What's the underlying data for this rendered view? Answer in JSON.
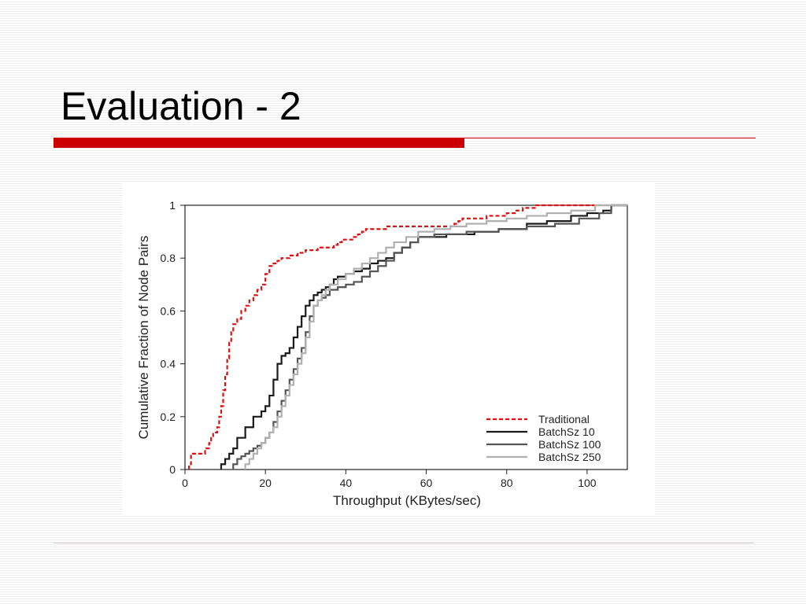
{
  "slide": {
    "title": "Evaluation - 2",
    "accent_color": "#cc0000",
    "rule_color": "#e3c8c8"
  },
  "chart_data": {
    "type": "line",
    "step": true,
    "xlabel": "Throughput (KBytes/sec)",
    "ylabel": "Cumulative Fraction of Node Pairs",
    "xlim": [
      0,
      110
    ],
    "ylim": [
      0,
      1
    ],
    "xticks": [
      "0",
      "20",
      "40",
      "60",
      "80",
      "100"
    ],
    "yticks": [
      "0",
      "0.2",
      "0.4",
      "0.6",
      "0.8",
      "1"
    ],
    "legend_position": "bottom-right",
    "grid": false,
    "series": [
      {
        "name": "Traditional",
        "color": "#dd1111",
        "dash": "dashed",
        "x": [
          1,
          1.5,
          5,
          6,
          6.5,
          7,
          8,
          8.5,
          9,
          9.5,
          10,
          10.5,
          11,
          11.5,
          12,
          13,
          14,
          15,
          16,
          17,
          18,
          19,
          20,
          21,
          22,
          23,
          24,
          25,
          26,
          28,
          30,
          33,
          35,
          37,
          38,
          39,
          42,
          43,
          44,
          45,
          50,
          57,
          63,
          67,
          68,
          69,
          75,
          80,
          82,
          84,
          87,
          88
        ],
        "y": [
          0.02,
          0.06,
          0.08,
          0.1,
          0.12,
          0.14,
          0.16,
          0.2,
          0.24,
          0.3,
          0.36,
          0.42,
          0.48,
          0.52,
          0.55,
          0.57,
          0.6,
          0.62,
          0.64,
          0.66,
          0.68,
          0.7,
          0.74,
          0.77,
          0.78,
          0.79,
          0.8,
          0.8,
          0.81,
          0.82,
          0.83,
          0.84,
          0.84,
          0.85,
          0.86,
          0.87,
          0.88,
          0.89,
          0.9,
          0.91,
          0.92,
          0.92,
          0.92,
          0.93,
          0.94,
          0.95,
          0.96,
          0.97,
          0.98,
          0.99,
          1.0,
          1.0
        ]
      },
      {
        "name": "BatchSz 10",
        "color": "#1a1a1a",
        "dash": "solid",
        "x": [
          9,
          10,
          11,
          12,
          13,
          15,
          17,
          19,
          20,
          21,
          22,
          23,
          24,
          25,
          26,
          27,
          28,
          29,
          30,
          31,
          32,
          33,
          34,
          35,
          36,
          37,
          38,
          40,
          42,
          44,
          46,
          48,
          50,
          52,
          54,
          56,
          58,
          65,
          72,
          78,
          85,
          90,
          96,
          100,
          104,
          106,
          110
        ],
        "y": [
          0.02,
          0.04,
          0.06,
          0.08,
          0.12,
          0.16,
          0.2,
          0.22,
          0.24,
          0.28,
          0.34,
          0.4,
          0.43,
          0.44,
          0.46,
          0.5,
          0.54,
          0.58,
          0.62,
          0.64,
          0.66,
          0.67,
          0.68,
          0.69,
          0.7,
          0.72,
          0.73,
          0.74,
          0.75,
          0.76,
          0.78,
          0.79,
          0.8,
          0.82,
          0.84,
          0.86,
          0.88,
          0.89,
          0.9,
          0.91,
          0.93,
          0.94,
          0.96,
          0.97,
          0.98,
          1.0,
          1.0
        ]
      },
      {
        "name": "BatchSz 100",
        "color": "#555555",
        "dash": "solid",
        "x": [
          12,
          13,
          14,
          15,
          16,
          17,
          18,
          19,
          20,
          21,
          22,
          23,
          24,
          25,
          26,
          27,
          28,
          29,
          30,
          31,
          32,
          33,
          34,
          35,
          36,
          38,
          40,
          42,
          44,
          46,
          48,
          50,
          52,
          54,
          56,
          58,
          62,
          70,
          78,
          85,
          92,
          98,
          103,
          106,
          110
        ],
        "y": [
          0.02,
          0.04,
          0.05,
          0.06,
          0.07,
          0.08,
          0.09,
          0.1,
          0.12,
          0.14,
          0.18,
          0.22,
          0.26,
          0.3,
          0.34,
          0.38,
          0.42,
          0.46,
          0.52,
          0.58,
          0.62,
          0.64,
          0.65,
          0.66,
          0.68,
          0.69,
          0.7,
          0.71,
          0.73,
          0.75,
          0.77,
          0.79,
          0.82,
          0.84,
          0.86,
          0.88,
          0.89,
          0.9,
          0.91,
          0.92,
          0.93,
          0.95,
          0.97,
          1.0,
          1.0
        ]
      },
      {
        "name": "BatchSz 250",
        "color": "#b0b0b0",
        "dash": "solid",
        "x": [
          15,
          16,
          17,
          18,
          19,
          20,
          21,
          22,
          23,
          24,
          25,
          26,
          27,
          28,
          29,
          30,
          31,
          32,
          33,
          34,
          35,
          36,
          38,
          40,
          42,
          44,
          46,
          48,
          50,
          52,
          55,
          58,
          62,
          66,
          70,
          75,
          80,
          85,
          90,
          96,
          102,
          110
        ],
        "y": [
          0.02,
          0.04,
          0.06,
          0.08,
          0.1,
          0.12,
          0.14,
          0.16,
          0.2,
          0.24,
          0.28,
          0.32,
          0.36,
          0.4,
          0.44,
          0.5,
          0.56,
          0.62,
          0.64,
          0.66,
          0.68,
          0.7,
          0.72,
          0.74,
          0.76,
          0.78,
          0.8,
          0.82,
          0.84,
          0.86,
          0.88,
          0.9,
          0.91,
          0.92,
          0.93,
          0.94,
          0.95,
          0.96,
          0.97,
          0.98,
          1.0,
          1.0
        ]
      }
    ]
  }
}
